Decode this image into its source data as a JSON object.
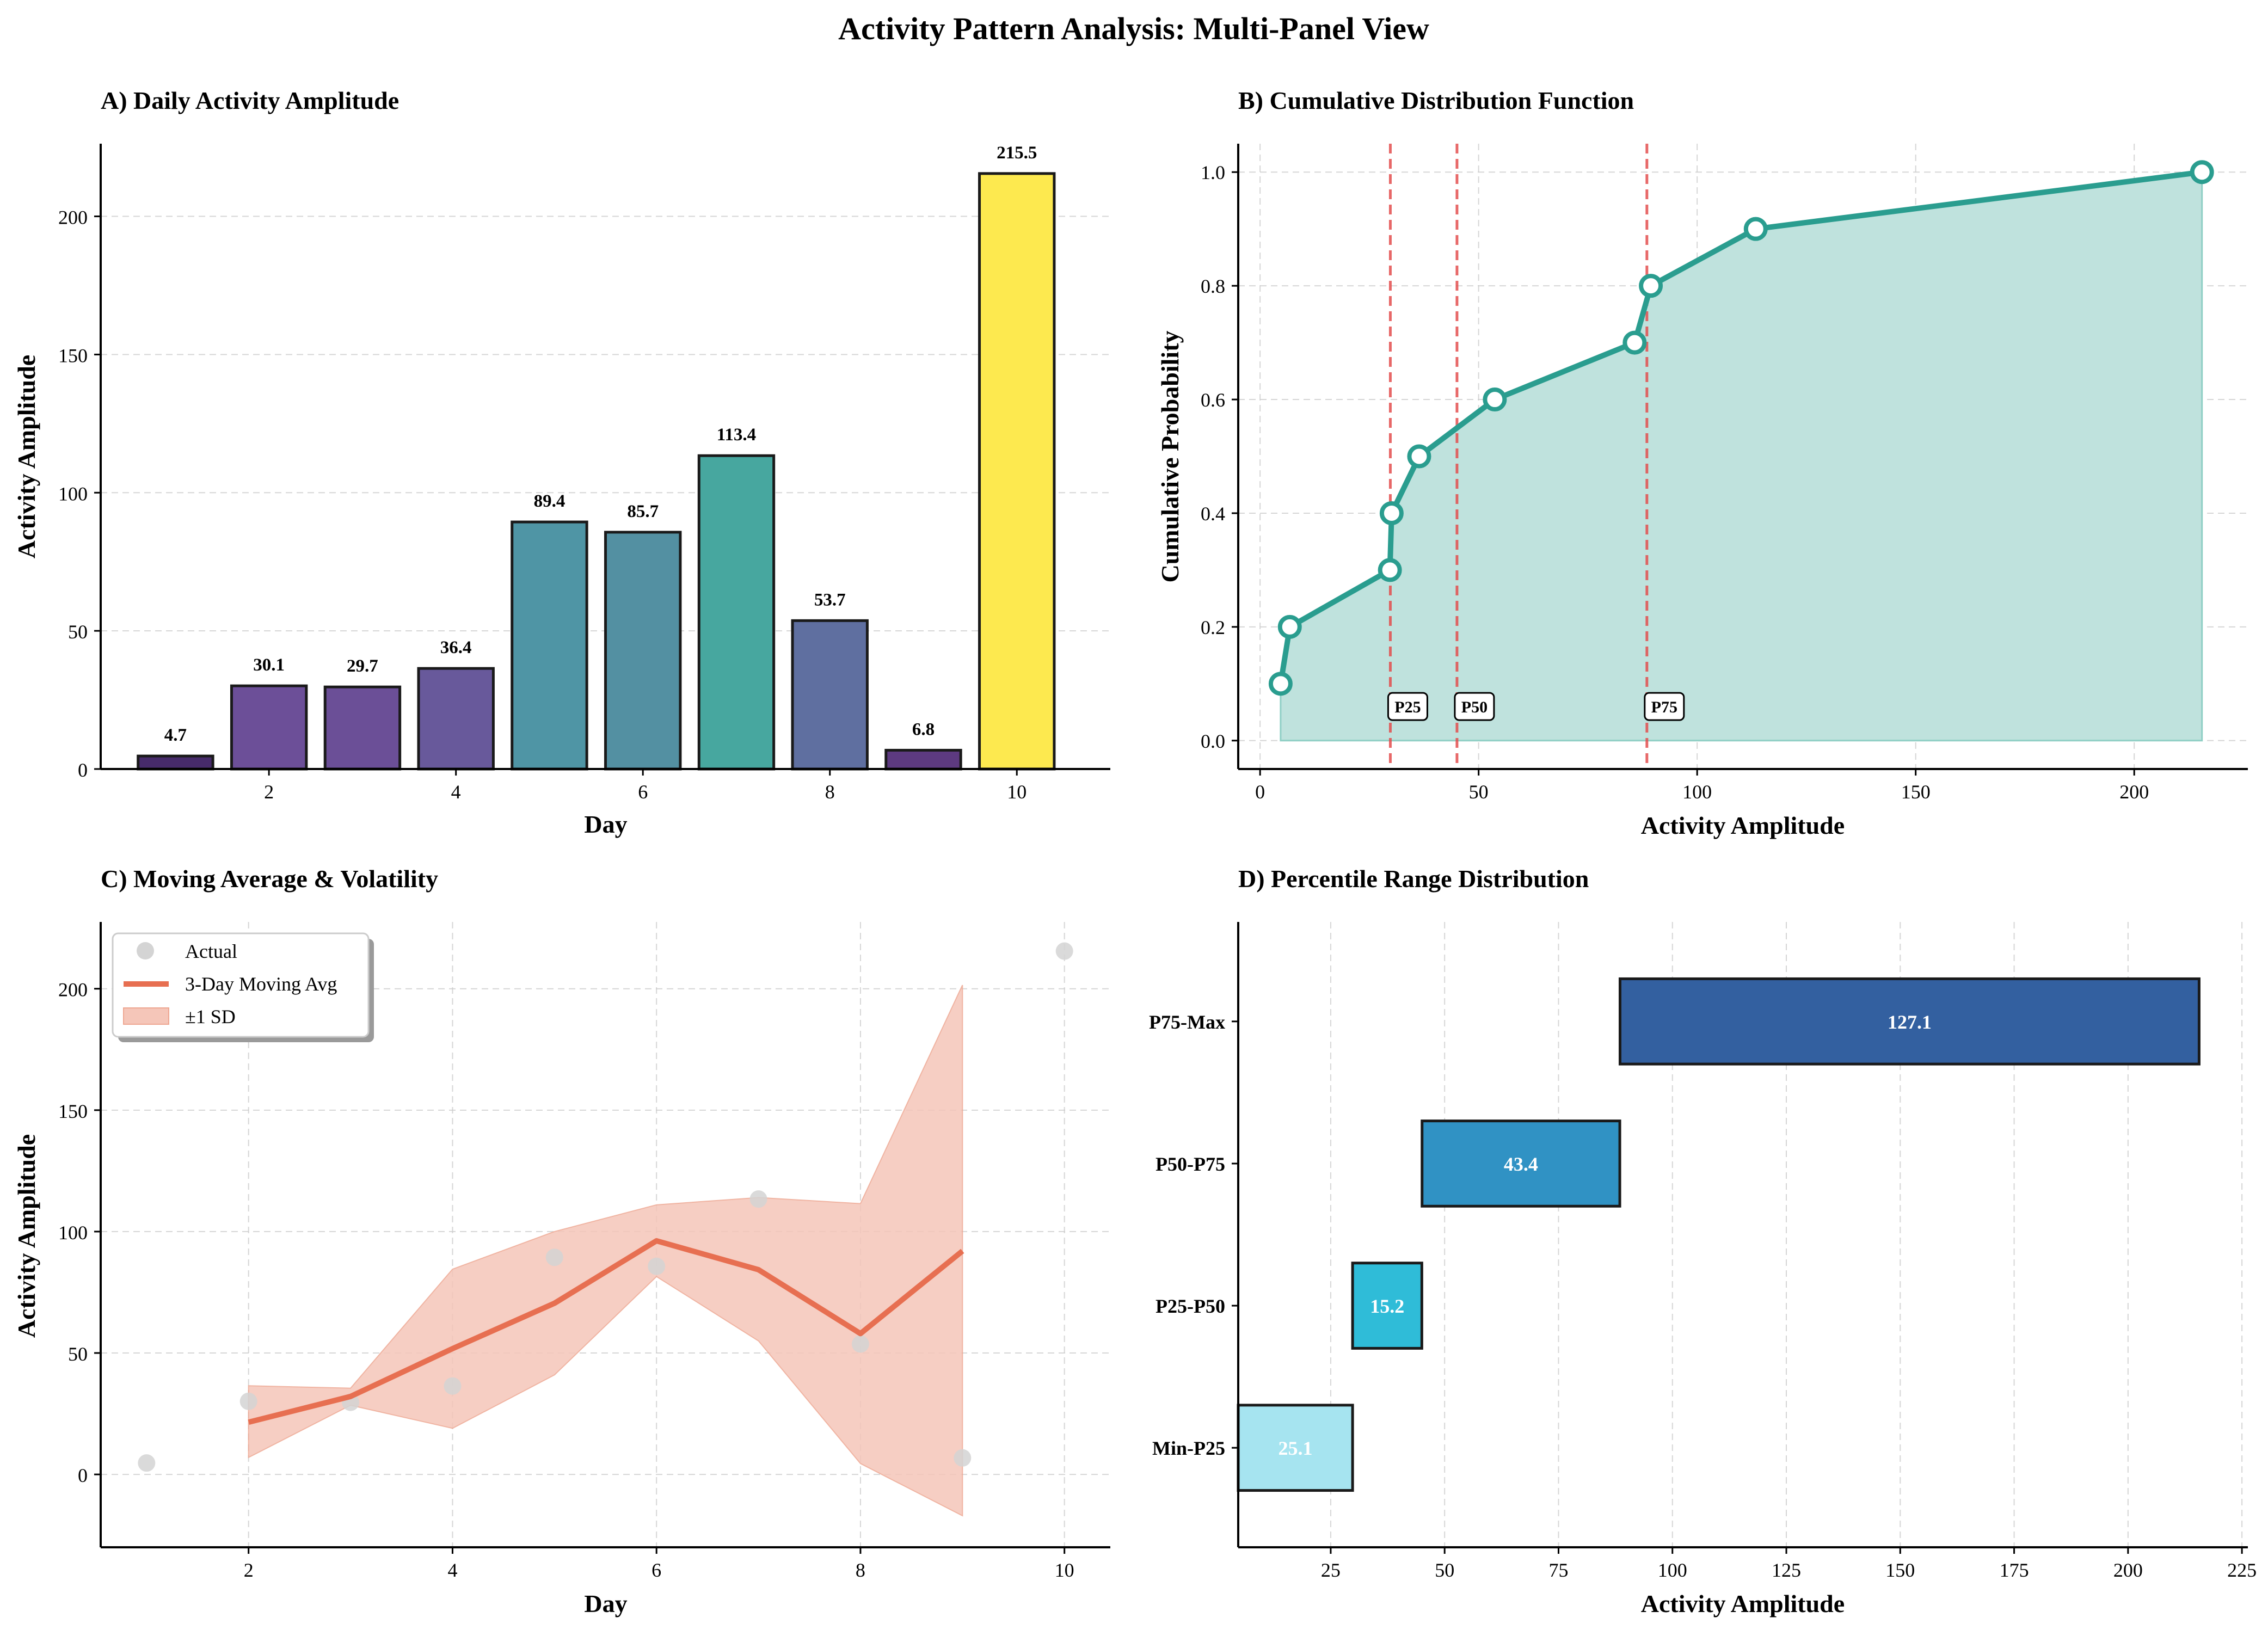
{
  "figure": {
    "title": "Activity Pattern Analysis: Multi-Panel View"
  },
  "colors": {
    "grid": "#cccccc",
    "axis": "#000000",
    "cdf_line": "#2a9d8f",
    "cdf_fill": "#bfe2dd",
    "percentile_line": "#e34d4d",
    "ma_line": "#e76f51",
    "ma_band": "#f5c6b9",
    "actual_points": "#d4d4d4"
  },
  "chart_data": [
    {
      "id": "A",
      "type": "bar",
      "title": "A) Daily Activity Amplitude",
      "xlabel": "Day",
      "ylabel": "Activity Amplitude",
      "x": [
        1,
        2,
        3,
        4,
        5,
        6,
        7,
        8,
        9,
        10
      ],
      "values": [
        4.7,
        30.1,
        29.7,
        36.4,
        89.4,
        85.7,
        113.4,
        53.7,
        6.8,
        215.5
      ],
      "data_labels": [
        "4.7",
        "30.1",
        "29.7",
        "36.4",
        "89.4",
        "85.7",
        "113.4",
        "53.7",
        "6.8",
        "215.5"
      ],
      "bar_colors": [
        "#472b6b",
        "#6c4f98",
        "#6b4f97",
        "#68599b",
        "#4f95a5",
        "#5390a2",
        "#47a79f",
        "#5f6fa0",
        "#5d3a80",
        "#fde94f"
      ],
      "xlim": [
        0.2,
        11.0
      ],
      "ylim": [
        0,
        226.3
      ],
      "xticks": [
        2,
        4,
        6,
        8,
        10
      ],
      "xtick_labels": [
        "2",
        "4",
        "6",
        "8",
        "10"
      ],
      "yticks": [
        0,
        50,
        100,
        150,
        200
      ],
      "ytick_labels": [
        "0",
        "50",
        "100",
        "150",
        "200"
      ],
      "grid": "y"
    },
    {
      "id": "B",
      "type": "line",
      "title": "B) Cumulative Distribution Function",
      "xlabel": "Activity Amplitude",
      "ylabel": "Cumulative Probability",
      "x": [
        4.7,
        6.8,
        29.7,
        30.1,
        36.4,
        53.7,
        85.7,
        89.4,
        113.4,
        215.5
      ],
      "y": [
        0.1,
        0.2,
        0.3,
        0.4,
        0.5,
        0.6,
        0.7,
        0.8,
        0.9,
        1.0
      ],
      "xlim": [
        -5,
        226
      ],
      "ylim": [
        -0.05,
        1.05
      ],
      "xticks": [
        0,
        50,
        100,
        150,
        200
      ],
      "xtick_labels": [
        "0",
        "50",
        "100",
        "150",
        "200"
      ],
      "yticks": [
        0.0,
        0.2,
        0.4,
        0.6,
        0.8,
        1.0
      ],
      "ytick_labels": [
        "0.0",
        "0.2",
        "0.4",
        "0.6",
        "0.8",
        "1.0"
      ],
      "percentiles": [
        {
          "label": "P25",
          "value": 29.8
        },
        {
          "label": "P50",
          "value": 45.05
        },
        {
          "label": "P75",
          "value": 88.5
        }
      ],
      "grid": "both"
    },
    {
      "id": "C",
      "type": "line",
      "title": "C) Moving Average & Volatility",
      "xlabel": "Day",
      "ylabel": "Activity Amplitude",
      "actual": {
        "name": "Actual",
        "x": [
          1,
          2,
          3,
          4,
          5,
          6,
          7,
          8,
          9,
          10
        ],
        "y": [
          4.7,
          30.1,
          29.7,
          36.4,
          89.4,
          85.7,
          113.4,
          53.7,
          6.8,
          215.5
        ]
      },
      "moving_avg": {
        "name": "3-Day Moving Avg",
        "x": [
          2,
          3,
          4,
          5,
          6,
          7,
          8,
          9
        ],
        "y": [
          21.5,
          32.1,
          51.8,
          70.5,
          96.2,
          84.3,
          58.0,
          92.0
        ]
      },
      "band": {
        "name": "±1 SD",
        "lower": [
          7.0,
          28.5,
          19.0,
          41.0,
          81.5,
          55.0,
          4.5,
          -17.0
        ],
        "upper": [
          36.5,
          35.5,
          84.5,
          100.0,
          111.0,
          114.0,
          111.5,
          201.5
        ]
      },
      "xlim": [
        0.55,
        10.45
      ],
      "ylim": [
        -30,
        227.5
      ],
      "xticks": [
        2,
        4,
        6,
        8,
        10
      ],
      "xtick_labels": [
        "2",
        "4",
        "6",
        "8",
        "10"
      ],
      "yticks": [
        0,
        50,
        100,
        150,
        200
      ],
      "ytick_labels": [
        "0",
        "50",
        "100",
        "150",
        "200"
      ],
      "legend_position": "top-left",
      "grid": "both"
    },
    {
      "id": "D",
      "type": "bar",
      "orientation": "horizontal",
      "title": "D) Percentile Range Distribution",
      "xlabel": "Activity Amplitude",
      "categories": [
        "Min-P25",
        "P25-P50",
        "P50-P75",
        "P75-Max"
      ],
      "starts": [
        4.7,
        29.8,
        45.05,
        88.5
      ],
      "widths": [
        25.1,
        15.2,
        43.4,
        127.1
      ],
      "data_labels": [
        "25.1",
        "15.2",
        "43.4",
        "127.1"
      ],
      "bar_colors": [
        "#a6e4f0",
        "#2fbcd8",
        "#3092c4",
        "#3360a0"
      ],
      "xlim": [
        4.7,
        226.3
      ],
      "xticks": [
        25,
        50,
        75,
        100,
        125,
        150,
        175,
        200,
        225
      ],
      "xtick_labels": [
        "25",
        "50",
        "75",
        "100",
        "125",
        "150",
        "175",
        "200",
        "225"
      ],
      "grid": "x"
    }
  ]
}
